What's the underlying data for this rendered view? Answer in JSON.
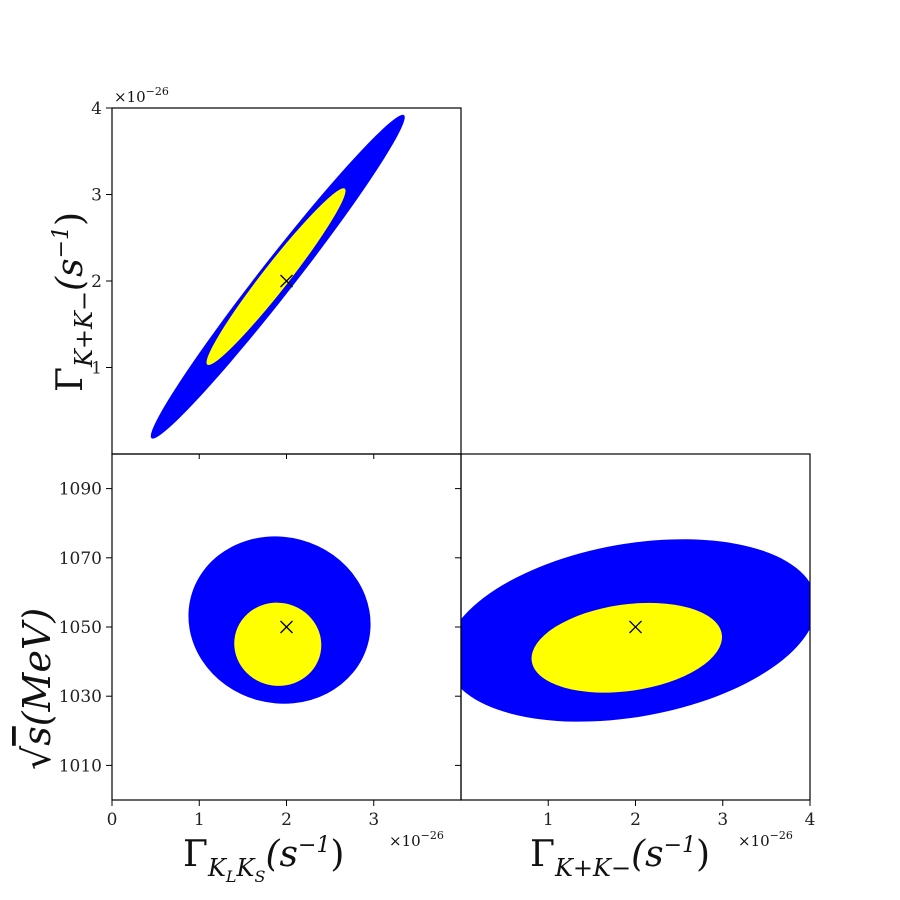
{
  "colors": {
    "outer_region": "#0000ff",
    "inner_region": "#ffff00",
    "marker": "#000000",
    "frame": "#000000",
    "background": "#ffffff"
  },
  "chart_data": [
    {
      "id": "top-left",
      "type": "contour",
      "x_param": "Gamma_KLKS",
      "y_param": "Gamma_K+K-",
      "xlim": [
        0,
        4
      ],
      "ylim": [
        0,
        4
      ],
      "xticks": [],
      "yticks": [
        1,
        2,
        3,
        4
      ],
      "ytick_labels": [
        "1",
        "2",
        "3",
        "4"
      ],
      "ylabel_html": "Γ<sub>K⁺K⁻</sub>(s⁻¹)",
      "ylabel_parts": {
        "base": "Γ",
        "sub": "K+K−",
        "rest": "(s",
        "sup": "−1",
        "close": ")"
      },
      "y_exponent": "×10",
      "y_exponent_sup": "−26",
      "best_fit": {
        "x": 2.0,
        "y": 2.0,
        "marker": "×"
      },
      "regions": [
        {
          "level": "outer",
          "center": [
            1.9,
            2.05
          ],
          "axes": [
            2.35,
            0.2
          ],
          "angle_deg": -52
        },
        {
          "level": "inner",
          "center": [
            1.88,
            2.05
          ],
          "axes": [
            1.28,
            0.15
          ],
          "angle_deg": -52
        }
      ]
    },
    {
      "id": "bottom-left",
      "type": "contour",
      "x_param": "Gamma_KLKS",
      "y_param": "sqrt_s",
      "xlim": [
        0,
        4
      ],
      "ylim": [
        1000,
        1100
      ],
      "xticks": [
        0,
        1,
        2,
        3
      ],
      "xtick_labels": [
        "0",
        "1",
        "2",
        "3"
      ],
      "yticks": [
        1010,
        1030,
        1050,
        1070,
        1090
      ],
      "ytick_labels": [
        "1010",
        "1030",
        "1050",
        "1070",
        "1090"
      ],
      "xlabel_parts": {
        "base": "Γ",
        "sub": "K",
        "subsub1": "L",
        "sub2": "K",
        "subsub2": "S",
        "rest": "(s",
        "sup": "−1",
        "close": ")"
      },
      "x_exponent": "×10",
      "x_exponent_sup": "−26",
      "ylabel_parts": {
        "root": "√",
        "body": "s(MeV)"
      },
      "best_fit": {
        "x": 2.0,
        "y": 1050,
        "marker": "×"
      },
      "regions": [
        {
          "level": "outer",
          "center": [
            1.92,
            1052
          ],
          "axes": [
            1.05,
            24
          ],
          "angle_deg": 15
        },
        {
          "level": "inner",
          "center": [
            1.9,
            1045
          ],
          "axes": [
            0.5,
            12
          ],
          "angle_deg": 12
        }
      ]
    },
    {
      "id": "bottom-right",
      "type": "contour",
      "x_param": "Gamma_K+K-",
      "y_param": "sqrt_s",
      "xlim": [
        0,
        4
      ],
      "ylim": [
        1000,
        1100
      ],
      "xticks": [
        1,
        2,
        3,
        4
      ],
      "xtick_labels": [
        "1",
        "2",
        "3",
        "4"
      ],
      "yticks": [
        1010,
        1030,
        1050,
        1070,
        1090
      ],
      "ytick_labels": [],
      "xlabel_parts": {
        "base": "Γ",
        "sub": "K+K−",
        "rest": "(s",
        "sup": "−1",
        "close": ")"
      },
      "x_exponent": "×10",
      "x_exponent_sup": "−26",
      "best_fit": {
        "x": 2.0,
        "y": 1050,
        "marker": "×"
      },
      "regions": [
        {
          "level": "outer",
          "center": [
            1.95,
            1049
          ],
          "axes": [
            2.15,
            25
          ],
          "angle_deg": -10
        },
        {
          "level": "inner",
          "center": [
            1.9,
            1044
          ],
          "axes": [
            1.1,
            12.5
          ],
          "angle_deg": -8
        }
      ]
    }
  ]
}
